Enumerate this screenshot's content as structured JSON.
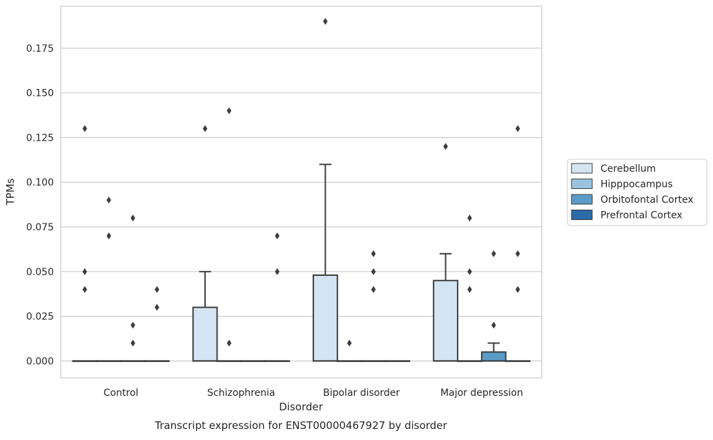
{
  "chart_data": {
    "type": "box",
    "xlabel": "Disorder",
    "ylabel": "TPMs",
    "caption": "Transcript expression for ENST00000467927 by disorder",
    "categories": [
      "Control",
      "Schizophrenia",
      "Bipolar disorder",
      "Major depression"
    ],
    "ylim": [
      -0.0095,
      0.1985
    ],
    "yticks": [
      0.0,
      0.025,
      0.05,
      0.075,
      0.1,
      0.125,
      0.15,
      0.175
    ],
    "ytick_labels": [
      "0.000",
      "0.025",
      "0.050",
      "0.075",
      "0.100",
      "0.125",
      "0.150",
      "0.175"
    ],
    "grid": "horizontal",
    "legend_position": "right",
    "series": [
      {
        "name": "Cerebellum",
        "color": "#d3e4f3",
        "boxes": [
          {
            "q1": 0,
            "median": 0,
            "q3": 0,
            "whisker_low": 0,
            "whisker_high": 0,
            "outliers": [
              0.13,
              0.05,
              0.04
            ]
          },
          {
            "q1": 0,
            "median": 0,
            "q3": 0.03,
            "whisker_low": 0,
            "whisker_high": 0.05,
            "outliers": [
              0.13
            ]
          },
          {
            "q1": 0,
            "median": 0,
            "q3": 0.048,
            "whisker_low": 0,
            "whisker_high": 0.11,
            "outliers": [
              0.19
            ]
          },
          {
            "q1": 0,
            "median": 0,
            "q3": 0.045,
            "whisker_low": 0,
            "whisker_high": 0.06,
            "outliers": [
              0.12
            ]
          }
        ]
      },
      {
        "name": "Hipppocampus",
        "color": "#9ac2df",
        "boxes": [
          {
            "q1": 0,
            "median": 0,
            "q3": 0,
            "whisker_low": 0,
            "whisker_high": 0,
            "outliers": [
              0.09,
              0.07
            ]
          },
          {
            "q1": 0,
            "median": 0,
            "q3": 0,
            "whisker_low": 0,
            "whisker_high": 0,
            "outliers": [
              0.14,
              0.01
            ]
          },
          {
            "q1": 0,
            "median": 0,
            "q3": 0,
            "whisker_low": 0,
            "whisker_high": 0,
            "outliers": [
              0.01
            ]
          },
          {
            "q1": 0,
            "median": 0,
            "q3": 0,
            "whisker_low": 0,
            "whisker_high": 0,
            "outliers": [
              0.08,
              0.05,
              0.04
            ]
          }
        ]
      },
      {
        "name": "Orbitofontal Cortex",
        "color": "#5b9bc8",
        "boxes": [
          {
            "q1": 0,
            "median": 0,
            "q3": 0,
            "whisker_low": 0,
            "whisker_high": 0,
            "outliers": [
              0.08,
              0.02,
              0.01
            ]
          },
          {
            "q1": 0,
            "median": 0,
            "q3": 0,
            "whisker_low": 0,
            "whisker_high": 0,
            "outliers": []
          },
          {
            "q1": 0,
            "median": 0,
            "q3": 0,
            "whisker_low": 0,
            "whisker_high": 0,
            "outliers": [
              0.06,
              0.05,
              0.04
            ]
          },
          {
            "q1": 0,
            "median": 0,
            "q3": 0.005,
            "whisker_low": 0,
            "whisker_high": 0.01,
            "outliers": [
              0.06,
              0.02
            ]
          }
        ]
      },
      {
        "name": "Prefrontal Cortex",
        "color": "#2b6ca8",
        "boxes": [
          {
            "q1": 0,
            "median": 0,
            "q3": 0,
            "whisker_low": 0,
            "whisker_high": 0,
            "outliers": [
              0.04,
              0.03
            ]
          },
          {
            "q1": 0,
            "median": 0,
            "q3": 0,
            "whisker_low": 0,
            "whisker_high": 0,
            "outliers": [
              0.07,
              0.05
            ]
          },
          {
            "q1": 0,
            "median": 0,
            "q3": 0,
            "whisker_low": 0,
            "whisker_high": 0,
            "outliers": []
          },
          {
            "q1": 0,
            "median": 0,
            "q3": 0,
            "whisker_low": 0,
            "whisker_high": 0,
            "outliers": [
              0.13,
              0.06,
              0.04
            ]
          }
        ]
      }
    ]
  }
}
